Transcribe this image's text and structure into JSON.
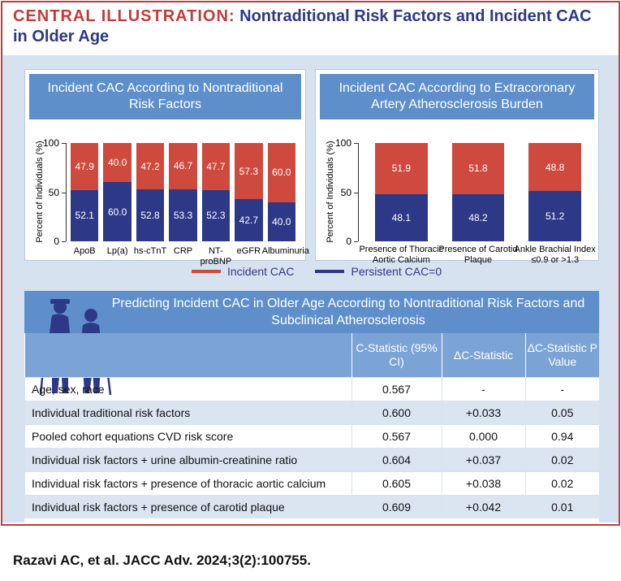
{
  "header": {
    "label": "CENTRAL ILLUSTRATION:",
    "title": "Nontraditional Risk Factors and Incident CAC in Older Age"
  },
  "chart_data": [
    {
      "type": "stacked-bar",
      "title": "Incident CAC According to Nontraditional Risk Factors",
      "y_label": "Percent of Individuals (%)",
      "categories": [
        "ApoB",
        "Lp(a)",
        "hs-cTnT",
        "CRP",
        "NT-proBNP",
        "eGFR",
        "Albuminuria"
      ],
      "series": [
        {
          "name": "Incident CAC",
          "color": "#cf4a3e",
          "values": [
            47.9,
            40.0,
            47.2,
            46.7,
            47.7,
            57.3,
            60.0
          ],
          "value_labels": [
            "47.9",
            "40.0",
            "47.2",
            "46.7",
            "47.7",
            "57.3",
            "60.0"
          ]
        },
        {
          "name": "Persistent CAC=0",
          "color": "#2d3887",
          "values": [
            52.1,
            60.0,
            52.8,
            53.3,
            52.3,
            42.7,
            40.0
          ],
          "value_labels": [
            "52.1",
            "60.0",
            "52.8",
            "53.3",
            "52.3",
            "42.7",
            "40.0"
          ]
        }
      ],
      "ylim": [
        0,
        100
      ],
      "yticks": [
        0,
        50,
        100
      ]
    },
    {
      "type": "stacked-bar",
      "title": "Incident CAC According to Extracoronary Artery Atherosclerosis Burden",
      "y_label": "Percent of Individuals (%)",
      "categories": [
        "Presence of Thoracic Aortic Calcium",
        "Presence of Carotid Plaque",
        "Ankle Brachial Index ≤0.9 or >1.3"
      ],
      "series": [
        {
          "color": "#cf4a3e",
          "values": [
            51.9,
            51.8,
            48.8
          ],
          "value_labels": [
            "51.9",
            "51.8",
            "48.8"
          ]
        },
        {
          "color": "#2d3887",
          "values": [
            48.1,
            48.2,
            51.2
          ],
          "value_labels": [
            "48.1",
            "48.2",
            "51.2"
          ]
        }
      ],
      "ylim": [
        0,
        100
      ],
      "yticks": [
        0,
        50,
        100
      ]
    }
  ],
  "table": {
    "title": "Predicting Incident CAC in Older Age According to Nontraditional Risk Factors and Subclinical Atherosclerosis",
    "columns": [
      "C-Statistic (95% CI)",
      "ΔC-Statistic",
      "ΔC-Statistic P Value"
    ],
    "rows": [
      [
        "Age, sex, race",
        "0.567",
        "-",
        "-"
      ],
      [
        "Individual traditional risk factors",
        "0.600",
        "+0.033",
        "0.05"
      ],
      [
        "Pooled cohort equations CVD risk score",
        "0.567",
        "0.000",
        "0.94"
      ],
      [
        "Individual risk factors + urine albumin-creatinine ratio",
        "0.604",
        "+0.037",
        "0.02"
      ],
      [
        "Individual risk factors + presence of thoracic aortic calcium",
        "0.605",
        "+0.038",
        "0.02"
      ],
      [
        "Individual risk factors + presence of carotid plaque",
        "0.609",
        "+0.042",
        "0.01"
      ]
    ]
  },
  "citation": "Razavi AC, et al. JACC Adv. 2024;3(2):100755."
}
